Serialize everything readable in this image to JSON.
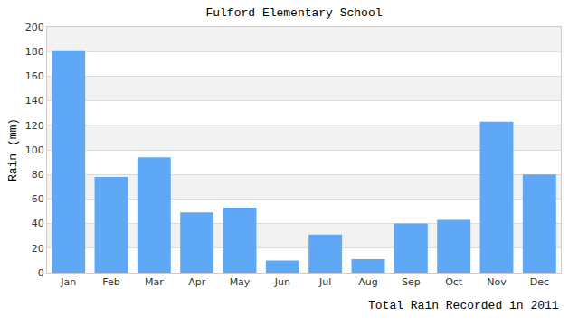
{
  "chart_data": {
    "type": "bar",
    "title": "Fulford Elementary School",
    "x_label": "Total Rain Recorded in 2011",
    "y_label": "Rain (mm)",
    "categories": [
      "Jan",
      "Feb",
      "Mar",
      "Apr",
      "May",
      "Jun",
      "Jul",
      "Aug",
      "Sep",
      "Oct",
      "Nov",
      "Dec"
    ],
    "values": [
      181,
      78,
      94,
      49,
      53,
      10,
      31,
      11,
      40,
      43,
      123,
      80
    ],
    "color": "#5fa8f5",
    "ylim": [
      0,
      200
    ],
    "yticks": [
      0,
      20,
      40,
      60,
      80,
      100,
      120,
      140,
      160,
      180,
      200
    ],
    "grid": true
  }
}
